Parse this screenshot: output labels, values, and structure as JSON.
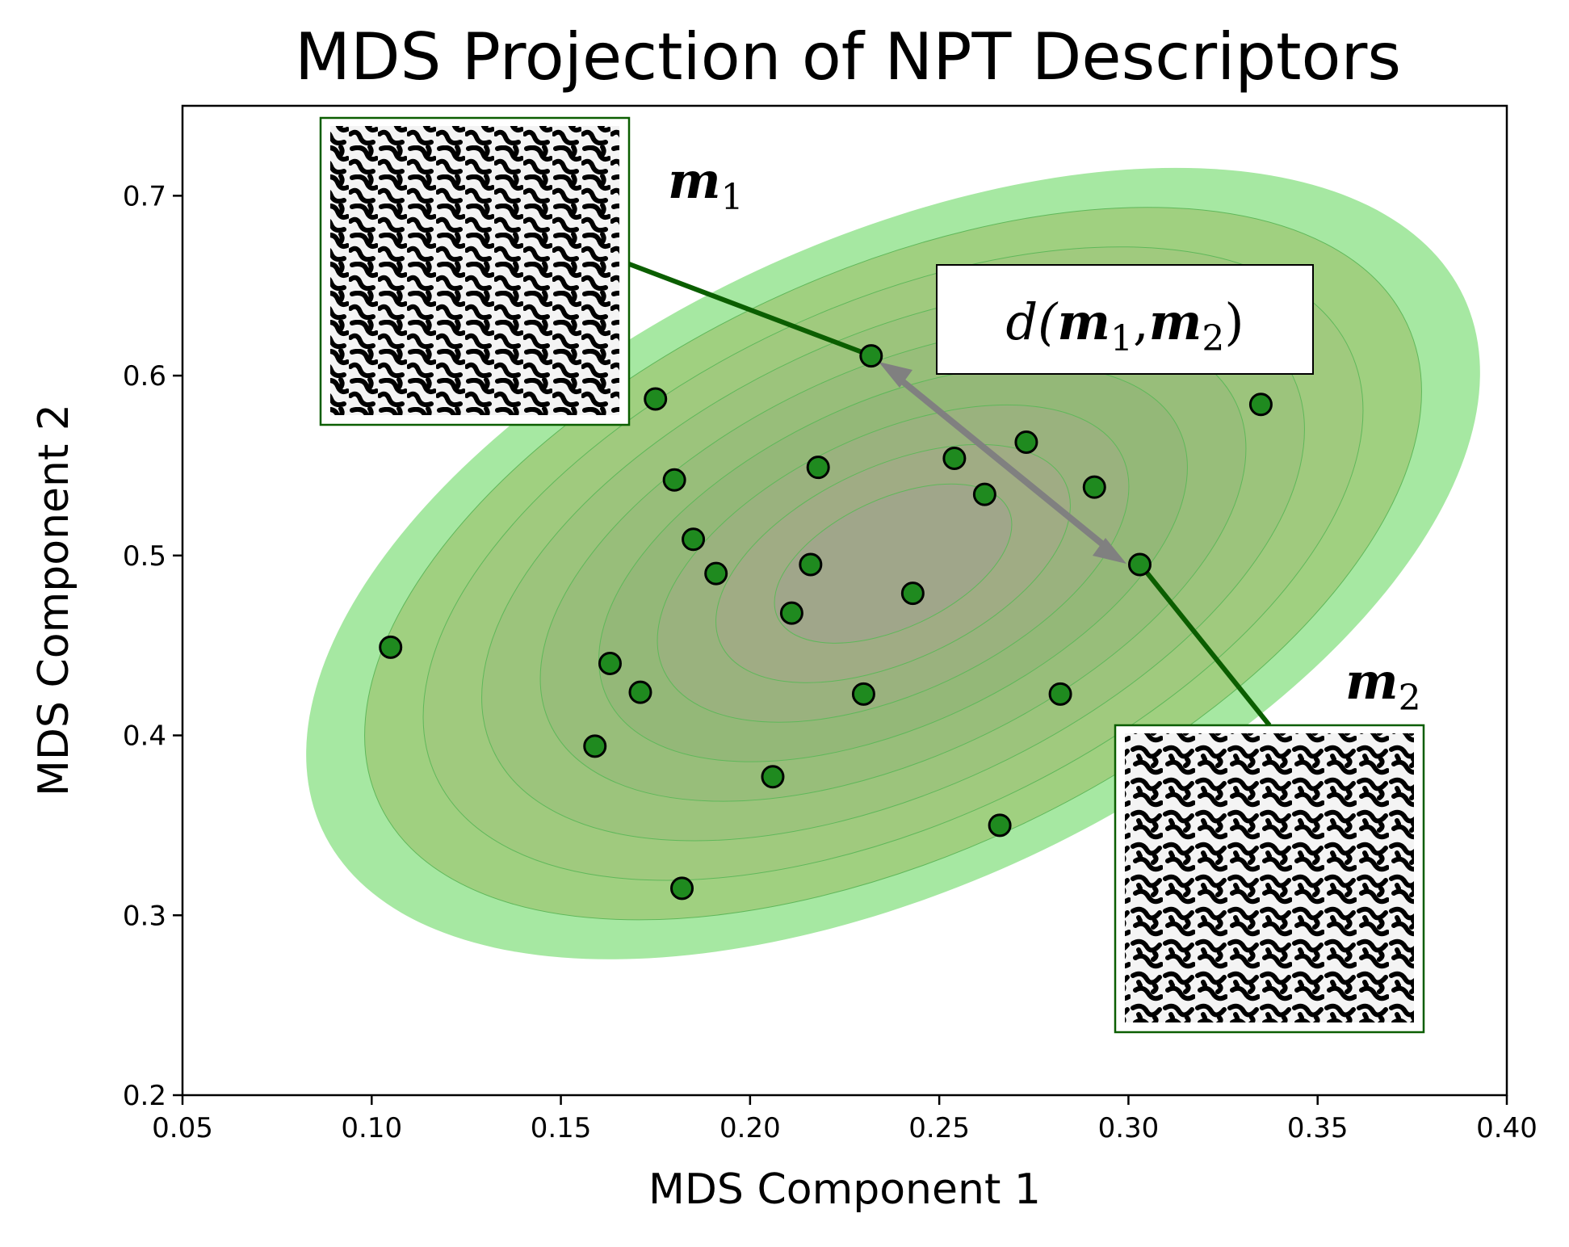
{
  "chart_data": {
    "type": "scatter",
    "title": "MDS Projection of NPT Descriptors",
    "xlabel": "MDS Component 1",
    "ylabel": "MDS Component 2",
    "xlim": [
      0.05,
      0.4
    ],
    "ylim": [
      0.2,
      0.75
    ],
    "xticks": [
      "0.05",
      "0.10",
      "0.15",
      "0.20",
      "0.25",
      "0.30",
      "0.35",
      "0.40"
    ],
    "yticks": [
      "0.2",
      "0.3",
      "0.4",
      "0.5",
      "0.6",
      "0.7"
    ],
    "grid": false,
    "density_contours": {
      "center": [
        0.225,
        0.5
      ],
      "levels": 9,
      "color": "#7fd67a"
    },
    "points": [
      {
        "x": 0.105,
        "y": 0.449
      },
      {
        "x": 0.175,
        "y": 0.587
      },
      {
        "x": 0.18,
        "y": 0.542
      },
      {
        "x": 0.185,
        "y": 0.509
      },
      {
        "x": 0.191,
        "y": 0.49
      },
      {
        "x": 0.163,
        "y": 0.44
      },
      {
        "x": 0.171,
        "y": 0.424
      },
      {
        "x": 0.159,
        "y": 0.394
      },
      {
        "x": 0.182,
        "y": 0.315
      },
      {
        "x": 0.206,
        "y": 0.377
      },
      {
        "x": 0.211,
        "y": 0.468
      },
      {
        "x": 0.216,
        "y": 0.495
      },
      {
        "x": 0.218,
        "y": 0.549
      },
      {
        "x": 0.23,
        "y": 0.423
      },
      {
        "x": 0.232,
        "y": 0.611
      },
      {
        "x": 0.243,
        "y": 0.479
      },
      {
        "x": 0.254,
        "y": 0.554
      },
      {
        "x": 0.262,
        "y": 0.534
      },
      {
        "x": 0.273,
        "y": 0.563
      },
      {
        "x": 0.266,
        "y": 0.35
      },
      {
        "x": 0.282,
        "y": 0.423
      },
      {
        "x": 0.291,
        "y": 0.538
      },
      {
        "x": 0.303,
        "y": 0.495
      },
      {
        "x": 0.335,
        "y": 0.584
      }
    ],
    "highlighted": {
      "m1": {
        "label": "m",
        "subscript": "1",
        "x": 0.232,
        "y": 0.611
      },
      "m2": {
        "label": "m",
        "subscript": "2",
        "x": 0.303,
        "y": 0.495
      }
    },
    "distance_label": {
      "prefix": "d(",
      "m": "m",
      "sub1": "1",
      "comma": ",",
      "sub2": "2",
      "suffix": ")"
    },
    "colors": {
      "point_fill": "#1f8a1f",
      "point_edge": "#000000",
      "leader_line": "#0b5e00",
      "arrow": "#808080",
      "inset_border": "#0b5e00"
    }
  }
}
